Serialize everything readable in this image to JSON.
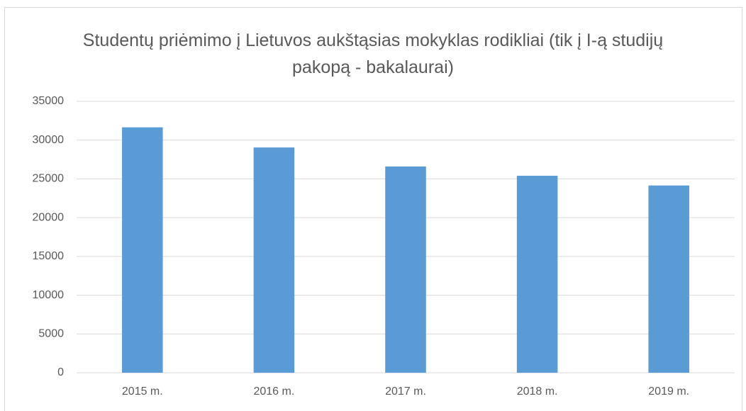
{
  "chart_data": {
    "type": "bar",
    "title": "Studentų priėmimo į Lietuvos aukštąsias mokyklas rodikliai (tik į I-ą studijų pakopą - bakalaurai)",
    "categories": [
      "2015 m.",
      "2016 m.",
      "2017 m.",
      "2018 m.",
      "2019 m."
    ],
    "values": [
      31650,
      29050,
      26600,
      25400,
      24150
    ],
    "color": "#5b9bd5",
    "ylim": [
      0,
      35000
    ],
    "yticks": [
      0,
      5000,
      10000,
      15000,
      20000,
      25000,
      30000,
      35000
    ],
    "grid": true
  }
}
